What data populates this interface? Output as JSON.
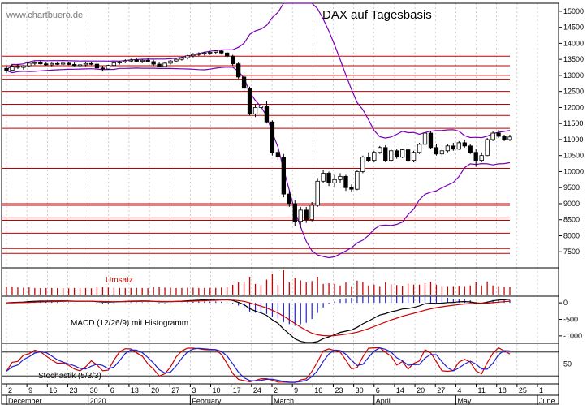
{
  "chart_data": {
    "type": "candlestick",
    "title": "DAX auf Tagesbasis",
    "watermark": "www.chartbuero.de",
    "colors": {
      "price": "#000000",
      "bands": "#7a00b4",
      "support": "#c00000",
      "volume": "#cc0000",
      "macd": "#000000",
      "signal": "#cc0000",
      "histogram": "#1f1fd0",
      "stoch_k": "#cc0000",
      "stoch_d": "#1f1fd0",
      "grid": "#b0b0b0"
    },
    "price_panel": {
      "ylim": [
        7000,
        15250
      ],
      "y_ticks": [
        "15000",
        "14500",
        "14000",
        "13500",
        "13000",
        "12500",
        "12000",
        "11500",
        "11000",
        "10500",
        "10000",
        "9500",
        "9000",
        "8500",
        "8000",
        "7500"
      ],
      "horizontal_levels": [
        13600,
        13300,
        13000,
        12880,
        12500,
        12100,
        11750,
        11350,
        10100,
        9000,
        8950,
        8560,
        8480,
        8080,
        7600,
        7450
      ],
      "candles": [
        {
          "o": 13220,
          "h": 13300,
          "l": 13080,
          "c": 13150
        },
        {
          "o": 13160,
          "h": 13340,
          "l": 13120,
          "c": 13280
        },
        {
          "o": 13280,
          "h": 13360,
          "l": 13200,
          "c": 13250
        },
        {
          "o": 13250,
          "h": 13320,
          "l": 13180,
          "c": 13300
        },
        {
          "o": 13300,
          "h": 13420,
          "l": 13260,
          "c": 13380
        },
        {
          "o": 13380,
          "h": 13440,
          "l": 13320,
          "c": 13400
        },
        {
          "o": 13400,
          "h": 13450,
          "l": 13340,
          "c": 13360
        },
        {
          "o": 13360,
          "h": 13420,
          "l": 13300,
          "c": 13330
        },
        {
          "o": 13330,
          "h": 13400,
          "l": 13280,
          "c": 13370
        },
        {
          "o": 13370,
          "h": 13430,
          "l": 13320,
          "c": 13350
        },
        {
          "o": 13350,
          "h": 13410,
          "l": 13300,
          "c": 13380
        },
        {
          "o": 13380,
          "h": 13420,
          "l": 13320,
          "c": 13340
        },
        {
          "o": 13340,
          "h": 13400,
          "l": 13280,
          "c": 13300
        },
        {
          "o": 13300,
          "h": 13360,
          "l": 13250,
          "c": 13330
        },
        {
          "o": 13330,
          "h": 13400,
          "l": 13280,
          "c": 13370
        },
        {
          "o": 13370,
          "h": 13420,
          "l": 13320,
          "c": 13350
        },
        {
          "o": 13350,
          "h": 13390,
          "l": 13200,
          "c": 13230
        },
        {
          "o": 13230,
          "h": 13300,
          "l": 13120,
          "c": 13200
        },
        {
          "o": 13200,
          "h": 13330,
          "l": 13180,
          "c": 13310
        },
        {
          "o": 13310,
          "h": 13420,
          "l": 13280,
          "c": 13390
        },
        {
          "o": 13390,
          "h": 13460,
          "l": 13340,
          "c": 13420
        },
        {
          "o": 13420,
          "h": 13500,
          "l": 13380,
          "c": 13450
        },
        {
          "o": 13450,
          "h": 13520,
          "l": 13400,
          "c": 13480
        },
        {
          "o": 13480,
          "h": 13550,
          "l": 13420,
          "c": 13440
        },
        {
          "o": 13440,
          "h": 13500,
          "l": 13380,
          "c": 13470
        },
        {
          "o": 13470,
          "h": 13530,
          "l": 13420,
          "c": 13430
        },
        {
          "o": 13430,
          "h": 13480,
          "l": 13300,
          "c": 13350
        },
        {
          "o": 13350,
          "h": 13420,
          "l": 13250,
          "c": 13280
        },
        {
          "o": 13280,
          "h": 13400,
          "l": 13250,
          "c": 13380
        },
        {
          "o": 13380,
          "h": 13480,
          "l": 13340,
          "c": 13450
        },
        {
          "o": 13450,
          "h": 13540,
          "l": 13420,
          "c": 13500
        },
        {
          "o": 13500,
          "h": 13580,
          "l": 13460,
          "c": 13550
        },
        {
          "o": 13550,
          "h": 13640,
          "l": 13500,
          "c": 13610
        },
        {
          "o": 13610,
          "h": 13700,
          "l": 13560,
          "c": 13650
        },
        {
          "o": 13650,
          "h": 13720,
          "l": 13600,
          "c": 13680
        },
        {
          "o": 13680,
          "h": 13740,
          "l": 13620,
          "c": 13700
        },
        {
          "o": 13700,
          "h": 13760,
          "l": 13640,
          "c": 13720
        },
        {
          "o": 13720,
          "h": 13790,
          "l": 13660,
          "c": 13760
        },
        {
          "o": 13760,
          "h": 13800,
          "l": 13650,
          "c": 13700
        },
        {
          "o": 13700,
          "h": 13740,
          "l": 13560,
          "c": 13600
        },
        {
          "o": 13600,
          "h": 13640,
          "l": 13300,
          "c": 13360
        },
        {
          "o": 13360,
          "h": 13400,
          "l": 12900,
          "c": 12950
        },
        {
          "o": 12950,
          "h": 13050,
          "l": 12500,
          "c": 12600
        },
        {
          "o": 12600,
          "h": 12650,
          "l": 11750,
          "c": 11800
        },
        {
          "o": 11800,
          "h": 12100,
          "l": 11700,
          "c": 12000
        },
        {
          "o": 12000,
          "h": 12150,
          "l": 11850,
          "c": 12050
        },
        {
          "o": 12050,
          "h": 12200,
          "l": 11500,
          "c": 11550
        },
        {
          "o": 11550,
          "h": 11600,
          "l": 10500,
          "c": 10600
        },
        {
          "o": 10600,
          "h": 10700,
          "l": 10350,
          "c": 10450
        },
        {
          "o": 10450,
          "h": 10550,
          "l": 9200,
          "c": 9300
        },
        {
          "o": 9300,
          "h": 9400,
          "l": 8900,
          "c": 9000
        },
        {
          "o": 9000,
          "h": 9100,
          "l": 8300,
          "c": 8450
        },
        {
          "o": 8450,
          "h": 8900,
          "l": 8250,
          "c": 8800
        },
        {
          "o": 8800,
          "h": 8900,
          "l": 8400,
          "c": 8500
        },
        {
          "o": 8500,
          "h": 9050,
          "l": 8450,
          "c": 8950
        },
        {
          "o": 8950,
          "h": 9800,
          "l": 8900,
          "c": 9700
        },
        {
          "o": 9700,
          "h": 10050,
          "l": 9650,
          "c": 9950
        },
        {
          "o": 9950,
          "h": 10000,
          "l": 9550,
          "c": 9650
        },
        {
          "o": 9650,
          "h": 9900,
          "l": 9500,
          "c": 9750
        },
        {
          "o": 9750,
          "h": 9950,
          "l": 9650,
          "c": 9850
        },
        {
          "o": 9850,
          "h": 9900,
          "l": 9400,
          "c": 9500
        },
        {
          "o": 9500,
          "h": 9600,
          "l": 9350,
          "c": 9450
        },
        {
          "o": 9450,
          "h": 10050,
          "l": 9420,
          "c": 10000
        },
        {
          "o": 10000,
          "h": 10500,
          "l": 9950,
          "c": 10450
        },
        {
          "o": 10450,
          "h": 10600,
          "l": 10300,
          "c": 10350
        },
        {
          "o": 10350,
          "h": 10650,
          "l": 10300,
          "c": 10600
        },
        {
          "o": 10600,
          "h": 10800,
          "l": 10550,
          "c": 10750
        },
        {
          "o": 10750,
          "h": 10820,
          "l": 10300,
          "c": 10350
        },
        {
          "o": 10350,
          "h": 10700,
          "l": 10320,
          "c": 10650
        },
        {
          "o": 10650,
          "h": 10720,
          "l": 10400,
          "c": 10450
        },
        {
          "o": 10450,
          "h": 10700,
          "l": 10420,
          "c": 10680
        },
        {
          "o": 10680,
          "h": 10720,
          "l": 10300,
          "c": 10350
        },
        {
          "o": 10350,
          "h": 10650,
          "l": 10300,
          "c": 10600
        },
        {
          "o": 10600,
          "h": 10900,
          "l": 10550,
          "c": 10850
        },
        {
          "o": 10850,
          "h": 11250,
          "l": 10800,
          "c": 11200
        },
        {
          "o": 11200,
          "h": 11250,
          "l": 10700,
          "c": 10750
        },
        {
          "o": 10750,
          "h": 10850,
          "l": 10500,
          "c": 10550
        },
        {
          "o": 10550,
          "h": 10700,
          "l": 10450,
          "c": 10650
        },
        {
          "o": 10650,
          "h": 10850,
          "l": 10600,
          "c": 10800
        },
        {
          "o": 10800,
          "h": 10900,
          "l": 10650,
          "c": 10700
        },
        {
          "o": 10700,
          "h": 10950,
          "l": 10680,
          "c": 10900
        },
        {
          "o": 10900,
          "h": 11000,
          "l": 10750,
          "c": 10800
        },
        {
          "o": 10800,
          "h": 10850,
          "l": 10550,
          "c": 10600
        },
        {
          "o": 10600,
          "h": 10700,
          "l": 10150,
          "c": 10350
        },
        {
          "o": 10350,
          "h": 10600,
          "l": 10300,
          "c": 10500
        },
        {
          "o": 10500,
          "h": 11050,
          "l": 10480,
          "c": 11000
        },
        {
          "o": 11000,
          "h": 11250,
          "l": 10950,
          "c": 11200
        },
        {
          "o": 11200,
          "h": 11300,
          "l": 11050,
          "c": 11100
        },
        {
          "o": 11100,
          "h": 11150,
          "l": 10950,
          "c": 11000
        },
        {
          "o": 11000,
          "h": 11150,
          "l": 10950,
          "c": 11080
        }
      ]
    },
    "volume_panel": {
      "label": "Umsatz"
    },
    "macd_panel": {
      "label": "MACD (12/26/9) mit Histogramm",
      "y_ticks": [
        "0",
        "-500",
        "-1000"
      ],
      "ylim": [
        -1200,
        200
      ]
    },
    "stoch_panel": {
      "label": "Stochastik (5/3/3)",
      "y_ticks": [
        "50"
      ],
      "levels": [
        80,
        20
      ]
    },
    "x_axis": {
      "day_ticks": [
        "2",
        "9",
        "16",
        "23",
        "30",
        "6",
        "13",
        "20",
        "27",
        "3",
        "10",
        "17",
        "24",
        "2",
        "9",
        "16",
        "23",
        "30",
        "6",
        "14",
        "20",
        "27",
        "4",
        "11",
        "18",
        "25",
        "1"
      ],
      "month_labels": [
        "December",
        "2020",
        "February",
        "March",
        "April",
        "May",
        "June"
      ]
    }
  }
}
